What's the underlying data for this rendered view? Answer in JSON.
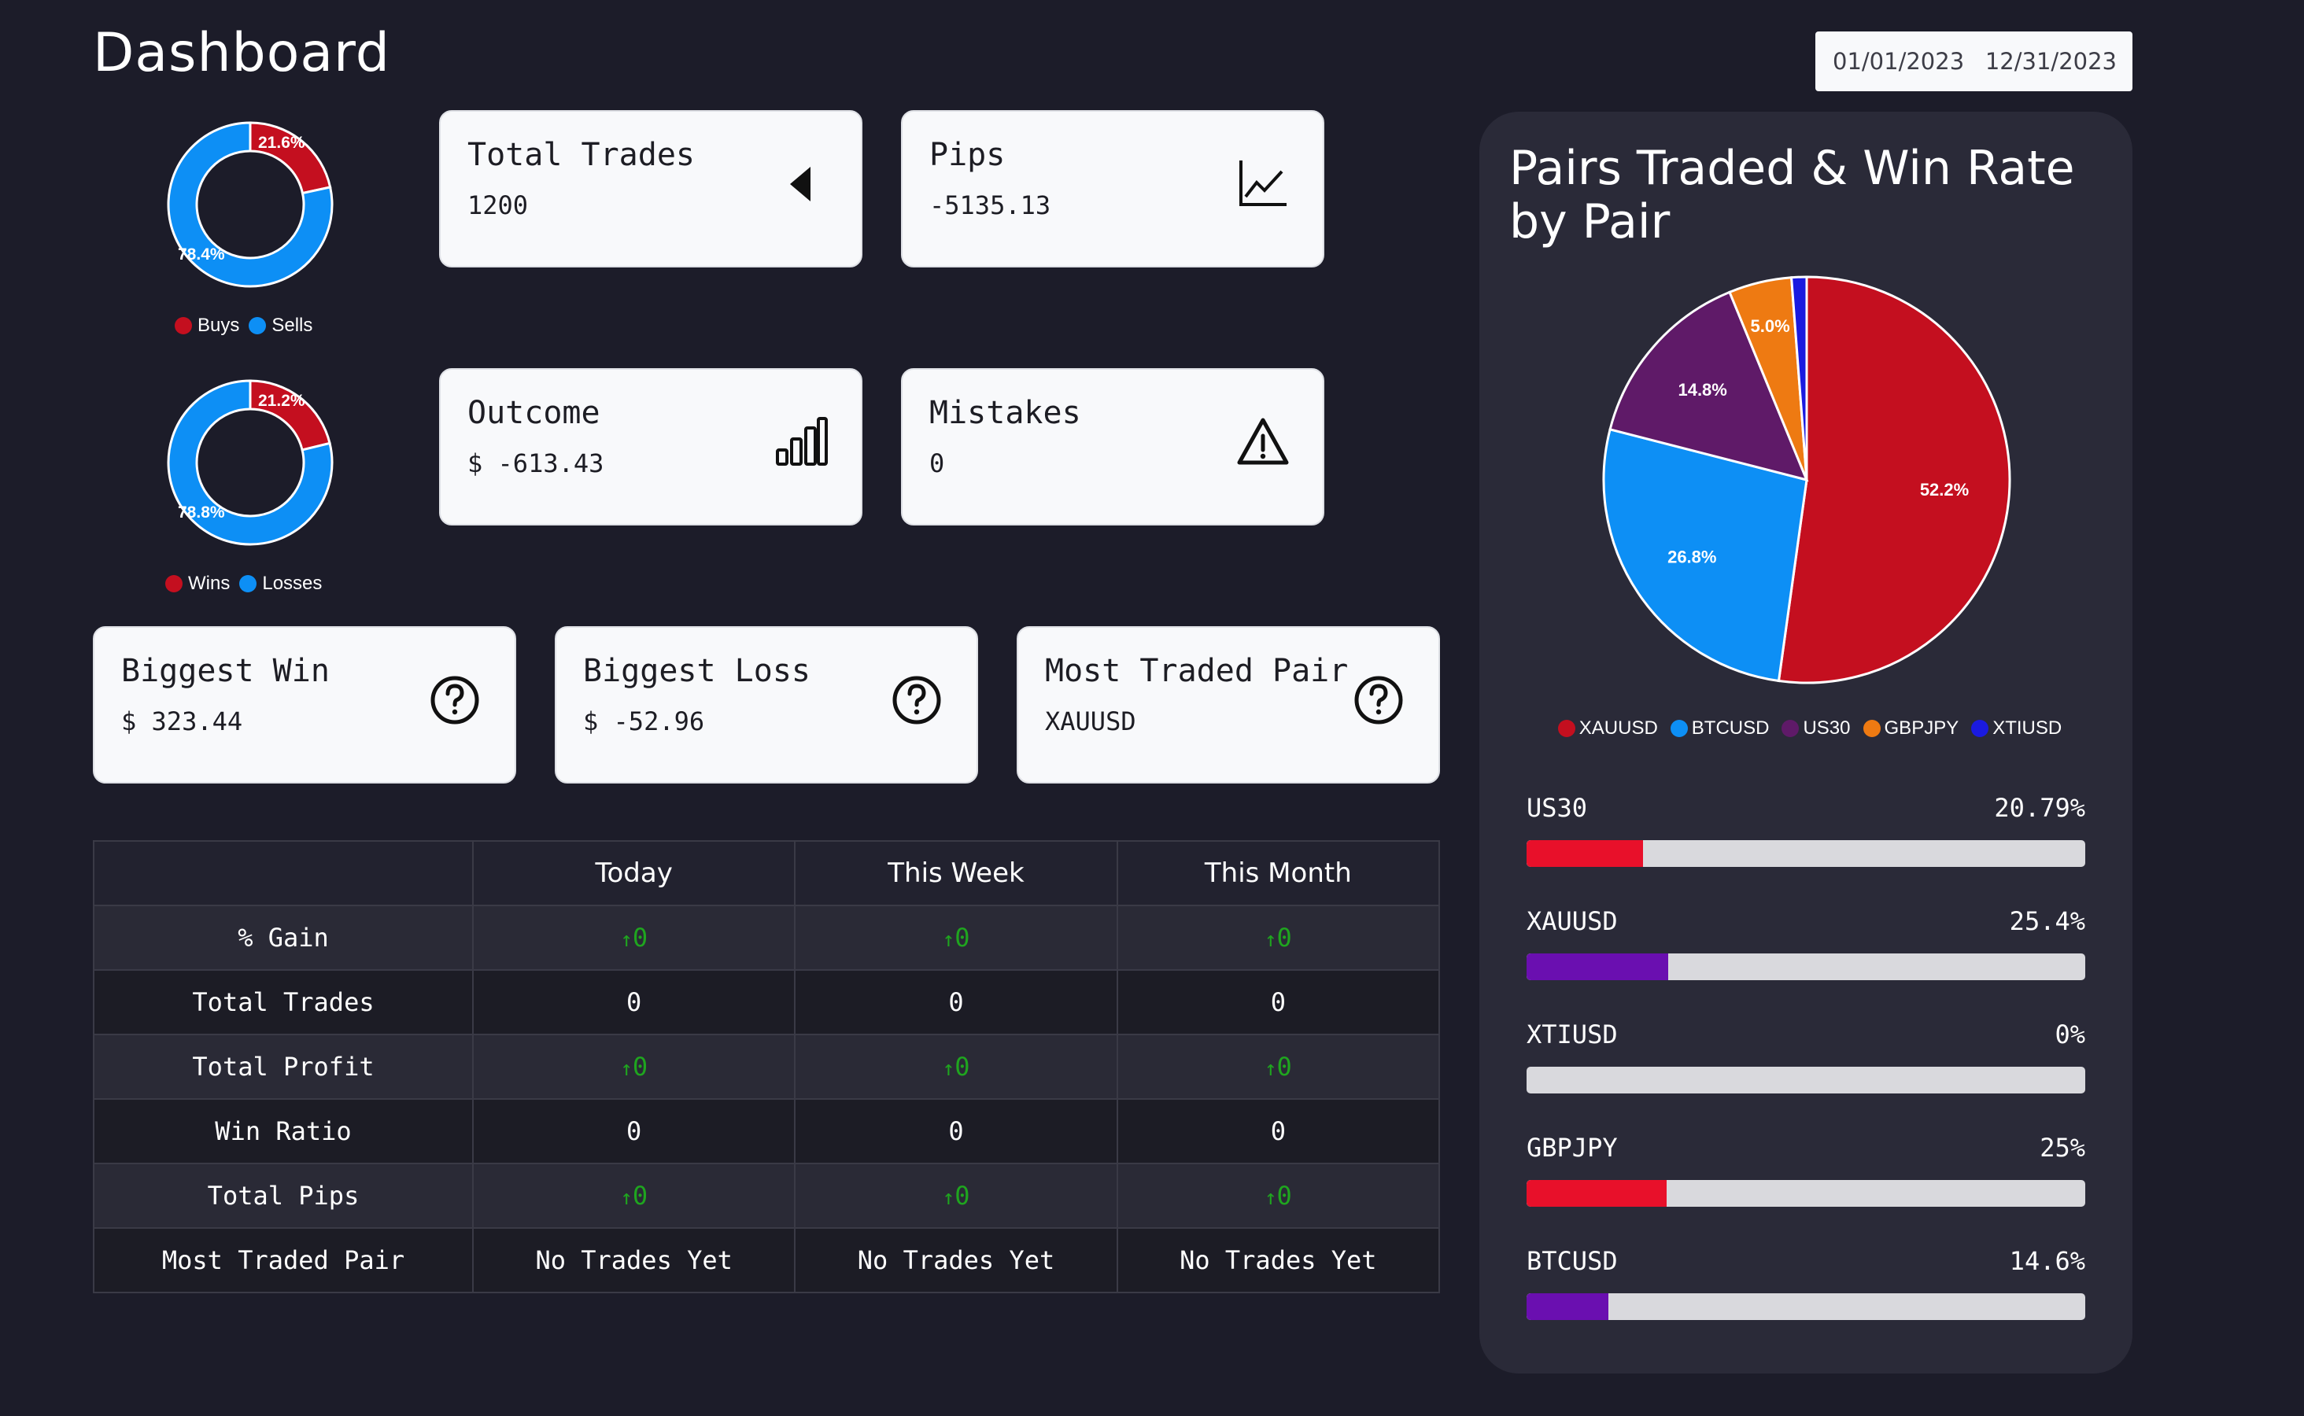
{
  "page": {
    "title": "Dashboard"
  },
  "date_range": {
    "start": "01/01/2023",
    "end": "12/31/2023"
  },
  "colors": {
    "red": "#c40f1f",
    "blue": "#0d8ff5",
    "purple": "#5f1a68",
    "orange": "#ee7a12",
    "darkblue": "#1a1ae0",
    "bar_red": "#e8102a",
    "bar_purple": "#6a0fb0",
    "up_green": "#1fa51f"
  },
  "donuts": [
    {
      "name": "buys-sells",
      "segments": [
        {
          "label": "Buys",
          "pct": 21.6,
          "display": "21.6%",
          "color": "#c40f1f"
        },
        {
          "label": "Sells",
          "pct": 78.4,
          "display": "78.4%",
          "color": "#0d8ff5"
        }
      ]
    },
    {
      "name": "wins-losses",
      "segments": [
        {
          "label": "Wins",
          "pct": 21.2,
          "display": "21.2%",
          "color": "#c40f1f"
        },
        {
          "label": "Losses",
          "pct": 78.8,
          "display": "78.8%",
          "color": "#0d8ff5"
        }
      ]
    }
  ],
  "cards": {
    "total_trades": {
      "title": "Total Trades",
      "value": "1200",
      "icon": "caret-left-icon"
    },
    "pips": {
      "title": "Pips",
      "value": "-5135.13",
      "icon": "line-chart-icon"
    },
    "outcome": {
      "title": "Outcome",
      "value": "$ -613.43",
      "icon": "bar-chart-icon"
    },
    "mistakes": {
      "title": "Mistakes",
      "value": "0",
      "icon": "warning-icon"
    },
    "biggest_win": {
      "title": "Biggest Win",
      "value": "$ 323.44",
      "icon": "question-icon"
    },
    "biggest_loss": {
      "title": "Biggest Loss",
      "value": "$ -52.96",
      "icon": "question-icon"
    },
    "most_traded_pair": {
      "title": "Most Traded Pair",
      "value": "XAUUSD",
      "icon": "question-icon"
    }
  },
  "table": {
    "headers": [
      "",
      "Today",
      "This Week",
      "This Month"
    ],
    "rows": [
      {
        "label": "% Gain",
        "cells": [
          "0",
          "0",
          "0"
        ],
        "trend": "up"
      },
      {
        "label": "Total Trades",
        "cells": [
          "0",
          "0",
          "0"
        ],
        "trend": ""
      },
      {
        "label": "Total Profit",
        "cells": [
          "0",
          "0",
          "0"
        ],
        "trend": "up"
      },
      {
        "label": "Win Ratio",
        "cells": [
          "0",
          "0",
          "0"
        ],
        "trend": ""
      },
      {
        "label": "Total Pips",
        "cells": [
          "0",
          "0",
          "0"
        ],
        "trend": "up"
      },
      {
        "label": "Most Traded Pair",
        "cells": [
          "No Trades Yet",
          "No Trades Yet",
          "No Trades Yet"
        ],
        "trend": ""
      }
    ]
  },
  "pairs_panel": {
    "title": "Pairs Traded & Win Rate by Pair"
  },
  "chart_data": {
    "type": "pie",
    "title": "Pairs Traded & Win Rate by Pair",
    "categories": [
      "XAUUSD",
      "BTCUSD",
      "US30",
      "GBPJPY",
      "XTIUSD"
    ],
    "values": [
      52.2,
      26.8,
      14.8,
      5.0,
      1.2
    ],
    "labels": [
      "52.2%",
      "26.8%",
      "14.8%",
      "5.0%",
      ""
    ],
    "colors": [
      "#c40f1f",
      "#0d8ff5",
      "#5f1a68",
      "#ee7a12",
      "#1a1ae0"
    ],
    "legend": "bottom"
  },
  "win_rates": [
    {
      "pair": "US30",
      "display": "20.79%",
      "value": 20.79,
      "color": "#e8102a"
    },
    {
      "pair": "XAUUSD",
      "display": "25.4%",
      "value": 25.4,
      "color": "#6a0fb0"
    },
    {
      "pair": "XTIUSD",
      "display": "0%",
      "value": 0,
      "color": "#e8102a"
    },
    {
      "pair": "GBPJPY",
      "display": "25%",
      "value": 25,
      "color": "#e8102a"
    },
    {
      "pair": "BTCUSD",
      "display": "14.6%",
      "value": 14.6,
      "color": "#6a0fb0"
    }
  ]
}
